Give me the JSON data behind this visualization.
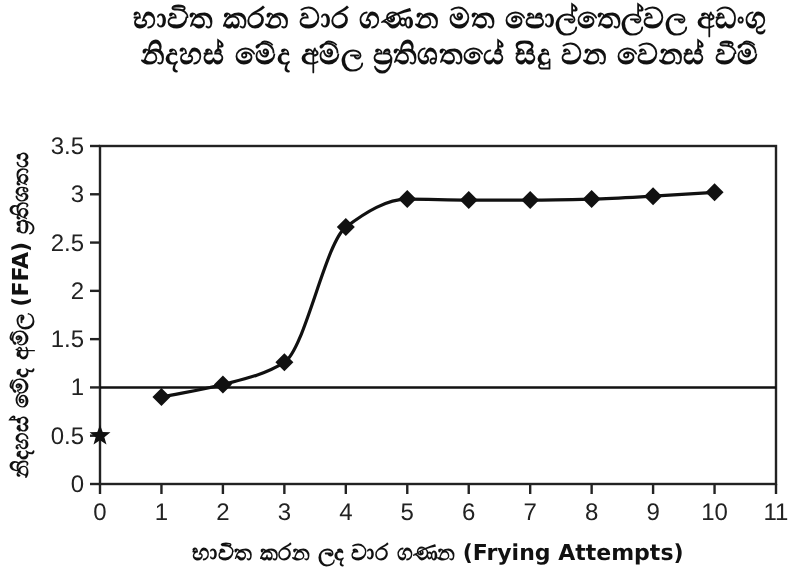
{
  "chart_data": {
    "type": "line",
    "title": "භාවිත කරන වාර ගණන මත පොල්තෙල්වල අඩංගු නිදහස් මේද අම්ල ප්‍රතිශතයේ සිදු වන වෙනස් වීම්",
    "xlabel": "භාවිත කරන ලද වාර ගණන (Frying Attempts)",
    "ylabel": "නිදහස් මේද අම්ල (FFA) ප්‍රතිශතය",
    "series": [
      {
        "color": "#111111",
        "marker": "diamond",
        "x": [
          1,
          2,
          3,
          4,
          5,
          6,
          7,
          8,
          9,
          10
        ],
        "values": [
          0.9,
          1.03,
          1.26,
          2.66,
          2.95,
          2.94,
          2.94,
          2.95,
          2.98,
          3.02
        ]
      },
      {
        "type": "scatter",
        "color": "#111111",
        "marker": "star",
        "x": [
          0
        ],
        "values": [
          0.5
        ]
      }
    ],
    "xlim": [
      0,
      11
    ],
    "xticks": [
      0,
      1,
      2,
      3,
      4,
      5,
      6,
      7,
      8,
      9,
      10,
      11
    ],
    "ylim": [
      0,
      3.5
    ],
    "yticks": [
      0,
      0.5,
      1,
      1.5,
      2,
      2.5,
      3,
      3.5
    ],
    "ref_lines": [
      {
        "axis": "y",
        "value": 1,
        "color": "#111111"
      }
    ],
    "grid": false
  }
}
